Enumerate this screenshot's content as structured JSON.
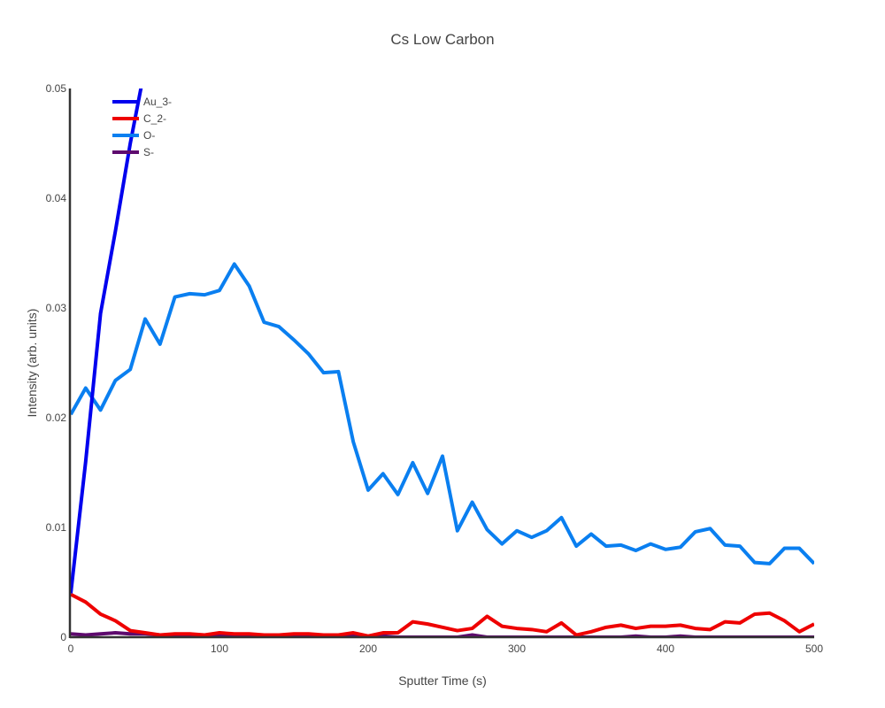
{
  "chart_data": {
    "type": "line",
    "title": "Cs Low Carbon",
    "xlabel": "Sputter Time (s)",
    "ylabel": "Intensity (arb. units)",
    "xlim": [
      0,
      500
    ],
    "ylim": [
      0,
      0.05
    ],
    "xticks": [
      "0",
      "100",
      "200",
      "300",
      "400",
      "500"
    ],
    "yticks": [
      "0",
      "0.01",
      "0.02",
      "0.03",
      "0.04",
      "0.05"
    ],
    "grid": false,
    "legend_position": "top-left",
    "x": [
      0,
      10,
      20,
      30,
      40,
      50,
      60,
      70,
      80,
      90,
      100,
      110,
      120,
      130,
      140,
      150,
      160,
      170,
      180,
      190,
      200,
      210,
      220,
      230,
      240,
      250,
      260,
      270,
      280,
      290,
      300,
      310,
      320,
      330,
      340,
      350,
      360,
      370,
      380,
      390,
      400,
      410,
      420,
      430,
      440,
      450,
      460,
      470,
      480,
      490,
      500
    ],
    "series": [
      {
        "name": "Au_3-",
        "color": "#0000ee",
        "x": [
          0,
          10,
          20,
          30,
          40,
          50
        ],
        "values": [
          0.004,
          0.016,
          0.0295,
          0.037,
          0.045,
          0.052
        ]
      },
      {
        "name": "C_2-",
        "color": "#ee0000",
        "values": [
          0.0039,
          0.0032,
          0.0021,
          0.0015,
          0.0006,
          0.0004,
          0.0002,
          0.0003,
          0.0003,
          0.0002,
          0.0004,
          0.0003,
          0.0003,
          0.0002,
          0.0002,
          0.0003,
          0.0003,
          0.0002,
          0.0002,
          0.0004,
          0.0001,
          0.0004,
          0.0004,
          0.0014,
          0.0012,
          0.0009,
          0.0006,
          0.0008,
          0.0019,
          0.001,
          0.0008,
          0.0007,
          0.0005,
          0.0013,
          0.0002,
          0.0005,
          0.0009,
          0.0011,
          0.0008,
          0.001,
          0.001,
          0.0011,
          0.0008,
          0.0007,
          0.0014,
          0.0013,
          0.0021,
          0.0022,
          0.0015,
          0.0005,
          0.0012
        ]
      },
      {
        "name": "O-",
        "color": "#0a7ff0",
        "values": [
          0.0203,
          0.0227,
          0.0207,
          0.0234,
          0.0244,
          0.029,
          0.0267,
          0.031,
          0.0313,
          0.0312,
          0.0316,
          0.034,
          0.032,
          0.0287,
          0.0283,
          0.0271,
          0.0258,
          0.0241,
          0.0242,
          0.0178,
          0.0134,
          0.0149,
          0.013,
          0.0159,
          0.0131,
          0.0165,
          0.0097,
          0.0123,
          0.0098,
          0.0085,
          0.0097,
          0.0091,
          0.0097,
          0.0109,
          0.0083,
          0.0094,
          0.0083,
          0.0084,
          0.0079,
          0.0085,
          0.008,
          0.0082,
          0.0096,
          0.0099,
          0.0084,
          0.0083,
          0.0068,
          0.0067,
          0.0081,
          0.0081,
          0.0067
        ]
      },
      {
        "name": "S-",
        "color": "#5e0a6e",
        "values": [
          0.0003,
          0.0002,
          0.0003,
          0.0004,
          0.0003,
          0.0003,
          0.0002,
          0.0001,
          0.0001,
          0.0001,
          0.0002,
          0.0001,
          0.0001,
          0.0001,
          0.0001,
          0.0001,
          0.0,
          0.0001,
          0.0001,
          0.0001,
          0.0,
          0.0001,
          0.0,
          0.0,
          0.0,
          0.0,
          0.0,
          0.0002,
          0.0,
          0.0,
          0.0,
          0.0,
          0.0,
          0.0,
          0.0,
          0.0,
          0.0,
          0.0,
          0.0001,
          0.0,
          0.0,
          0.0001,
          0.0,
          0.0,
          0.0,
          0.0,
          0.0,
          0.0,
          0.0,
          0.0,
          0.0
        ]
      }
    ]
  }
}
